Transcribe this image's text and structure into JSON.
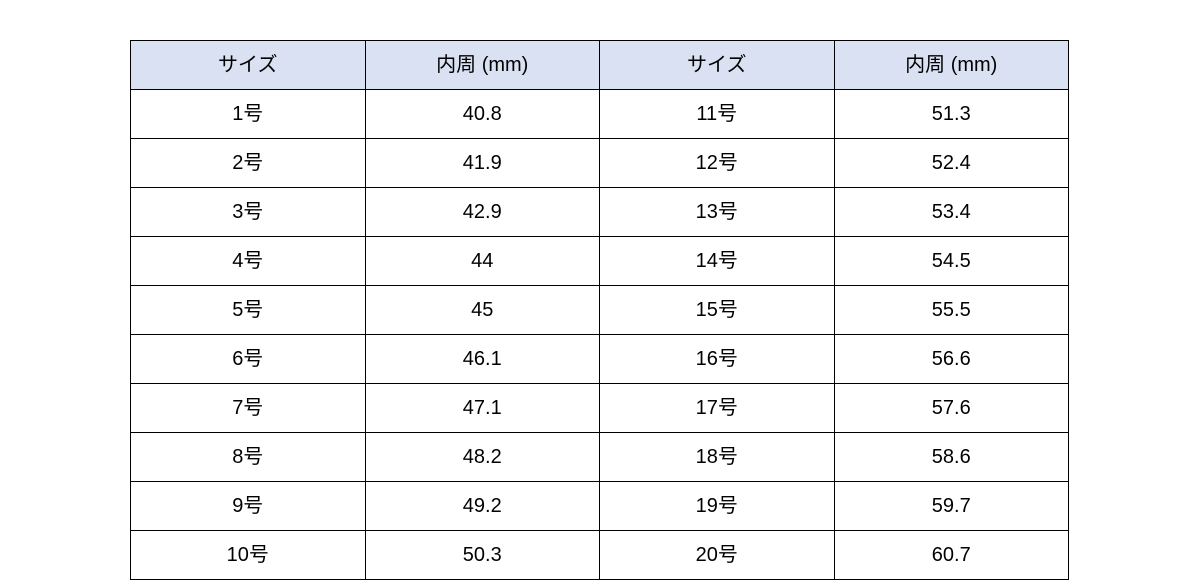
{
  "table": {
    "type": "table",
    "background_color": "#ffffff",
    "header_bg": "#d9e1f2",
    "border_color": "#000000",
    "text_color": "#000000",
    "font_size_pt": 15,
    "columns": [
      "サイズ",
      "内周 (mm)",
      "サイズ",
      "内周 (mm)"
    ],
    "column_align": [
      "center",
      "center",
      "center",
      "center"
    ],
    "rows": [
      [
        "1号",
        "40.8",
        "11号",
        "51.3"
      ],
      [
        "2号",
        "41.9",
        "12号",
        "52.4"
      ],
      [
        "3号",
        "42.9",
        "13号",
        "53.4"
      ],
      [
        "4号",
        "44",
        "14号",
        "54.5"
      ],
      [
        "5号",
        "45",
        "15号",
        "55.5"
      ],
      [
        "6号",
        "46.1",
        "16号",
        "56.6"
      ],
      [
        "7号",
        "47.1",
        "17号",
        "57.6"
      ],
      [
        "8号",
        "48.2",
        "18号",
        "58.6"
      ],
      [
        "9号",
        "49.2",
        "19号",
        "59.7"
      ],
      [
        "10号",
        "50.3",
        "20号",
        "60.7"
      ]
    ]
  }
}
